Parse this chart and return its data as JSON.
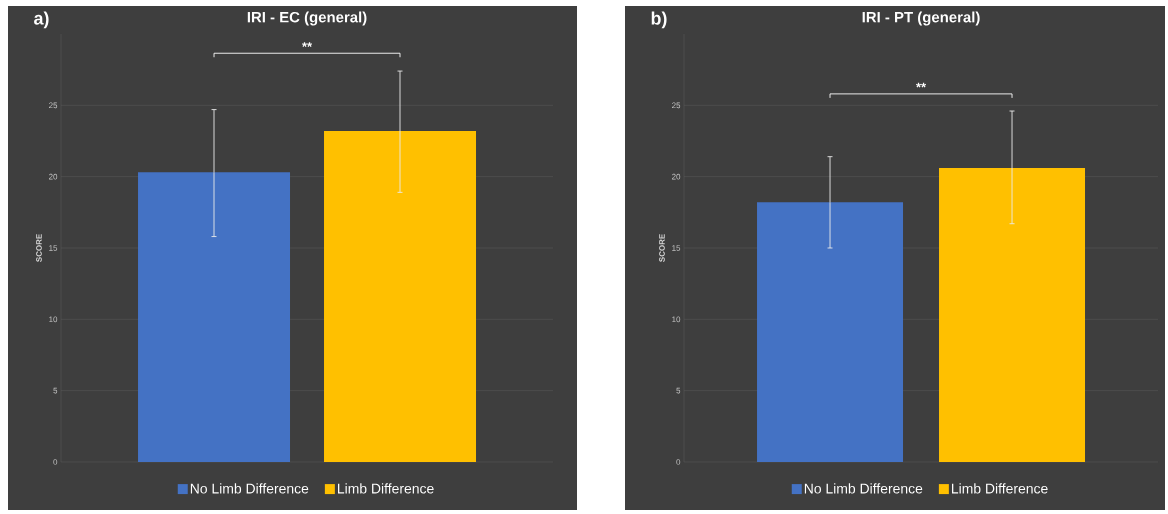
{
  "chart_data": [
    {
      "type": "bar",
      "title": "IRI - EC (general)",
      "ylabel": "SCORE",
      "categories": [
        null
      ],
      "series": [
        {
          "name": "No Limb Difference",
          "color": "#4472c4",
          "values": [
            20.3
          ],
          "errors": [
            [
              15.8,
              24.7
            ]
          ]
        },
        {
          "name": "Limb Difference",
          "color": "#ffc000",
          "values": [
            23.2
          ],
          "errors": [
            [
              18.9,
              27.4
            ]
          ]
        }
      ],
      "ylim": [
        0,
        30
      ],
      "yticks": [
        0,
        5,
        10,
        15,
        20,
        25
      ],
      "grid": "y",
      "legend": "bottom",
      "annotations": [
        "a)",
        "**"
      ]
    },
    {
      "type": "bar",
      "title": "IRI - PT (general)",
      "ylabel": "SCORE",
      "categories": [
        null
      ],
      "series": [
        {
          "name": "No Limb Difference",
          "color": "#4472c4",
          "values": [
            18.2
          ],
          "errors": [
            [
              15.0,
              21.4
            ]
          ]
        },
        {
          "name": "Limb Difference",
          "color": "#ffc000",
          "values": [
            20.6
          ],
          "errors": [
            [
              16.7,
              24.6
            ]
          ]
        }
      ],
      "ylim": [
        0,
        30
      ],
      "yticks": [
        0,
        5,
        10,
        15,
        20,
        25
      ],
      "grid": "y",
      "legend": "bottom",
      "annotations": [
        "b)",
        "**"
      ]
    }
  ]
}
